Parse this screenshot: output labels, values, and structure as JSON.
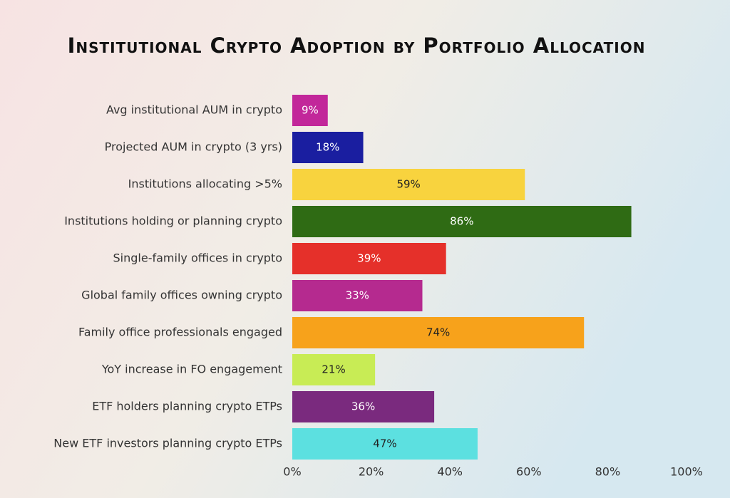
{
  "chart_data": {
    "type": "hbar",
    "title": "Institutional Crypto Adoption by Portfolio Allocation",
    "categories": [
      "Avg institutional AUM in crypto",
      "Projected AUM in crypto (3 yrs)",
      "Institutions allocating >5%",
      "Institutions holding or planning crypto",
      "Single-family offices in crypto",
      "Global family offices owning crypto",
      "Family office professionals engaged",
      "YoY increase in FO engagement",
      "ETF holders planning crypto ETPs",
      "New ETF investors planning crypto ETPs"
    ],
    "values": [
      9,
      18,
      59,
      86,
      39,
      33,
      74,
      21,
      36,
      47
    ],
    "value_labels": [
      "9%",
      "18%",
      "59%",
      "86%",
      "39%",
      "33%",
      "74%",
      "21%",
      "36%",
      "47%"
    ],
    "colors": [
      "#c2279a",
      "#1a1ea0",
      "#f8d33e",
      "#2f6b14",
      "#e5302a",
      "#b52a8f",
      "#f7a21b",
      "#c8ec55",
      "#7a2a7e",
      "#5ce0e0"
    ],
    "xlim": [
      0,
      100
    ],
    "xticks": [
      {
        "value": 0,
        "label": "0%"
      },
      {
        "value": 20,
        "label": "20%"
      },
      {
        "value": 40,
        "label": "40%"
      },
      {
        "value": 60,
        "label": "60%"
      },
      {
        "value": 80,
        "label": "80%"
      },
      {
        "value": 100,
        "label": "100%"
      }
    ],
    "grid": false
  }
}
